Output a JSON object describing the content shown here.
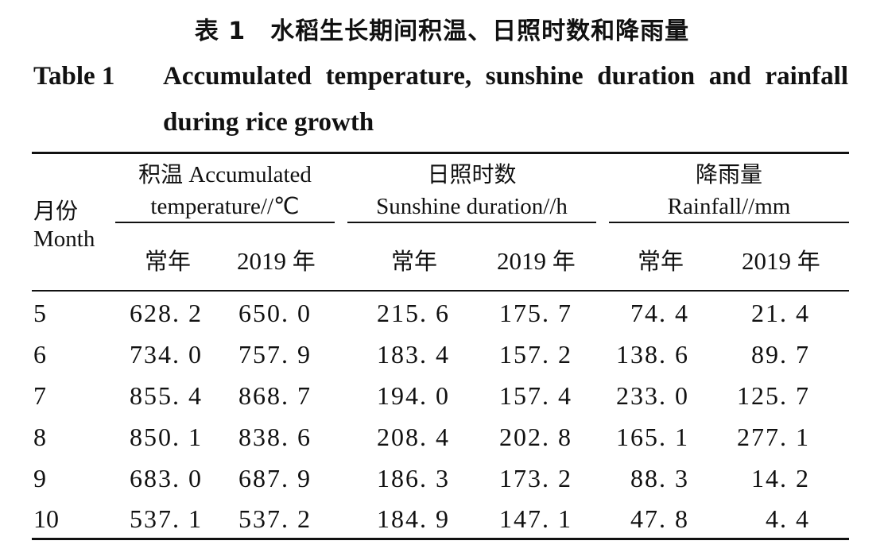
{
  "caption": {
    "cn": "表 1　水稻生长期间积温、日照时数和降雨量",
    "en_label": "Table 1",
    "en_title_line1": "Accumulated temperature, sunshine duration and rainfall",
    "en_title_line2": "during rice growth"
  },
  "header": {
    "month_cn": "月份",
    "month_en": "Month",
    "groups": [
      {
        "cn": "积温",
        "en_line1": "Accumulated",
        "en_line2": "temperature//℃"
      },
      {
        "cn": "日照时数",
        "en_line2": "Sunshine duration//h"
      },
      {
        "cn": "降雨量",
        "en_line2": "Rainfall//mm"
      }
    ],
    "sub_normal": "常年",
    "sub_2019_num": "2019",
    "sub_2019_cn": "年"
  },
  "rows": [
    {
      "month": "5",
      "v": [
        "628. 2",
        "650. 0",
        "215. 6",
        "175. 7",
        "74. 4",
        "21. 4"
      ]
    },
    {
      "month": "6",
      "v": [
        "734. 0",
        "757. 9",
        "183. 4",
        "157. 2",
        "138. 6",
        "89. 7"
      ]
    },
    {
      "month": "7",
      "v": [
        "855. 4",
        "868. 7",
        "194. 0",
        "157. 4",
        "233. 0",
        "125. 7"
      ]
    },
    {
      "month": "8",
      "v": [
        "850. 1",
        "838. 6",
        "208. 4",
        "202. 8",
        "165. 1",
        "277. 1"
      ]
    },
    {
      "month": "9",
      "v": [
        "683. 0",
        "687. 9",
        "186. 3",
        "173. 2",
        "88. 3",
        "14. 2"
      ]
    },
    {
      "month": "10",
      "v": [
        "537. 1",
        "537. 2",
        "184. 9",
        "147. 1",
        "47. 8",
        "4. 4"
      ]
    }
  ]
}
